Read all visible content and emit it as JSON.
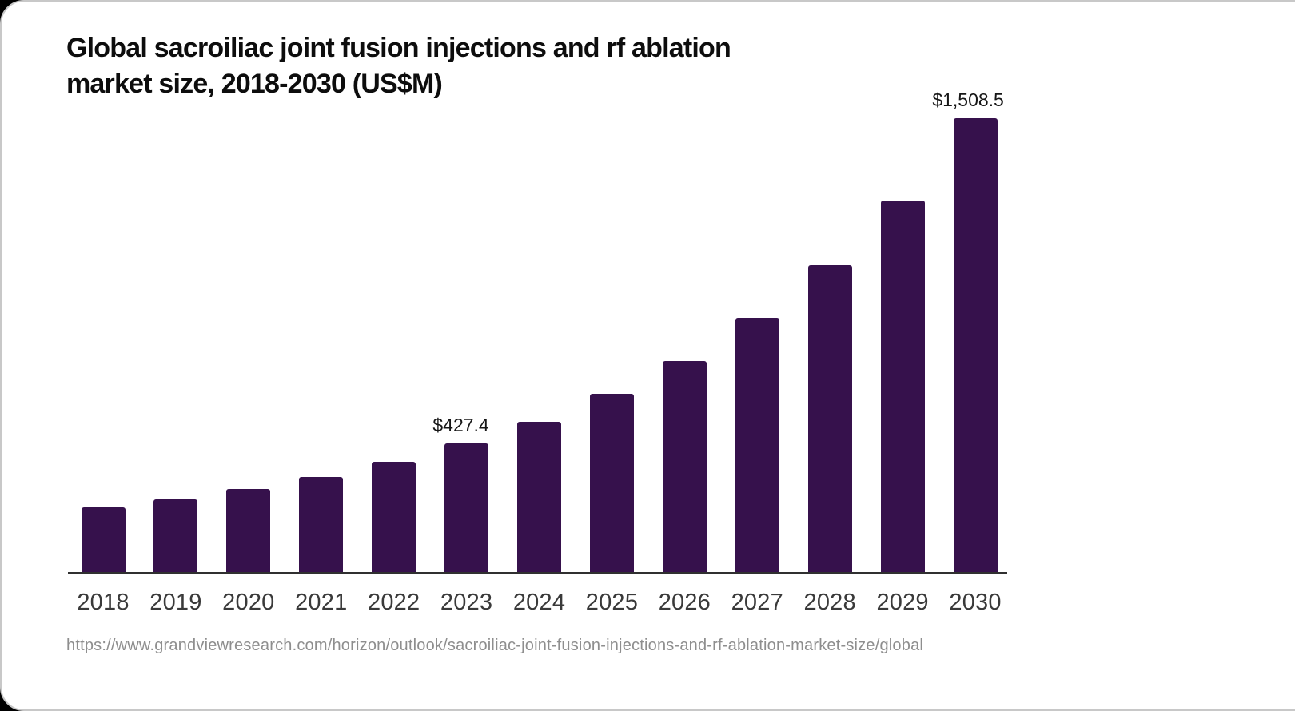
{
  "card": {
    "background_color": "#ffffff",
    "border_color": "#c8c8c8",
    "outside_color": "#000000"
  },
  "header": {
    "title_line1": "Global sacroiliac joint fusion injections and rf ablation",
    "title_line2": "market size, 2018-2030 (US$M)"
  },
  "chart_data": {
    "type": "bar",
    "title": "Global sacroiliac joint fusion injections and rf ablation market size, 2018-2030 (US$M)",
    "categories": [
      "2018",
      "2019",
      "2020",
      "2021",
      "2022",
      "2023",
      "2024",
      "2025",
      "2026",
      "2027",
      "2028",
      "2029",
      "2030"
    ],
    "values": [
      215,
      242,
      276,
      315,
      366,
      427.4,
      498,
      592,
      702,
      845,
      1021,
      1236,
      1508.5
    ],
    "value_labels": {
      "2023": "$427.4",
      "2030": "$1,508.5"
    },
    "unit": "US$M",
    "bar_color": "#36114C",
    "axis_color": "#303030",
    "tick_label_color": "#3a3a3a",
    "value_label_color": "#161616",
    "ylim": [
      0,
      1560
    ],
    "grid": false,
    "legend": false,
    "xlabel": "",
    "ylabel": ""
  },
  "footer": {
    "source_url": "https://www.grandviewresearch.com/horizon/outlook/sacroiliac-joint-fusion-injections-and-rf-ablation-market-size/global"
  }
}
